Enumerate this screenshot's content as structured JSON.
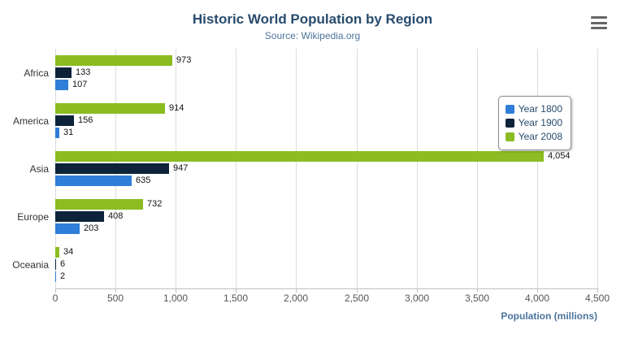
{
  "header": {
    "title": "Historic World Population by Region",
    "subtitle": "Source: Wikipedia.org"
  },
  "menu": {
    "icon": "hamburger-icon"
  },
  "legend": {
    "items": [
      {
        "label": "Year 1800",
        "color": "#2f7ed8"
      },
      {
        "label": "Year 1900",
        "color": "#0d233a"
      },
      {
        "label": "Year 2008",
        "color": "#8bbc21"
      }
    ]
  },
  "chart_data": {
    "type": "bar",
    "orientation": "horizontal",
    "title": "Historic World Population by Region",
    "subtitle": "Source: Wikipedia.org",
    "xlabel": "Population (millions)",
    "categories": [
      "Africa",
      "America",
      "Asia",
      "Europe",
      "Oceania"
    ],
    "series": [
      {
        "name": "Year 1800",
        "color": "#2f7ed8",
        "values": [
          107,
          31,
          635,
          203,
          2
        ]
      },
      {
        "name": "Year 1900",
        "color": "#0d233a",
        "values": [
          133,
          156,
          947,
          408,
          6
        ]
      },
      {
        "name": "Year 2008",
        "color": "#8bbc21",
        "values": [
          973,
          914,
          4054,
          732,
          34
        ]
      }
    ],
    "display_order_top_to_bottom": [
      "Year 2008",
      "Year 1900",
      "Year 1800"
    ],
    "xlim": [
      0,
      4500
    ],
    "xticks": [
      0,
      500,
      1000,
      1500,
      2000,
      2500,
      3000,
      3500,
      4000,
      4500
    ],
    "grid": true,
    "legend_position": "right-floating"
  }
}
